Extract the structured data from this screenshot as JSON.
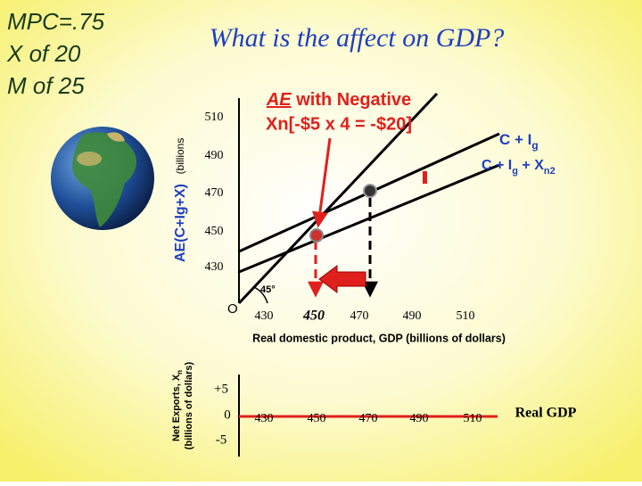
{
  "side_notes": [
    "MPC=.75",
    "X of 20",
    "M of 25"
  ],
  "title": "What is the affect on GDP?",
  "upper_chart": {
    "y_axis_label": "AE(C+Ig+X)",
    "y_axis_unit": "(billions",
    "y_ticks": [
      "510",
      "490",
      "470",
      "450",
      "430"
    ],
    "origin": "O",
    "x_ticks": [
      "430",
      "450",
      "470",
      "490",
      "510"
    ],
    "x_axis_label": "Real domestic product, GDP (billions of dollars)",
    "angle_label": "45°",
    "annotation": {
      "term": "AE",
      "rest": " with Negative",
      "line2": "Xn[-$5 x 4 = -$20]"
    },
    "line_label_1": [
      "C + I",
      "g"
    ],
    "line_label_2": [
      "C + I",
      "g",
      " + X",
      "n2"
    ]
  },
  "lower_chart": {
    "y_axis_label": [
      "Net Exports, X",
      "n"
    ],
    "y_axis_unit": "(billions of dollars)",
    "y_ticks": [
      "+5",
      "0",
      "-5"
    ],
    "x_ticks": [
      "430",
      "450",
      "470",
      "490",
      "510"
    ],
    "x_axis_label": "Real GDP"
  }
}
